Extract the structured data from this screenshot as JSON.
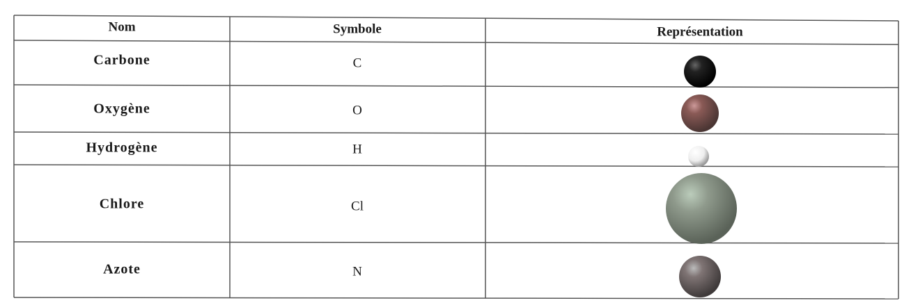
{
  "header": [
    "Nom",
    "Symbole",
    "Représentation"
  ],
  "rows": [
    [
      "Carbone",
      "C"
    ],
    [
      "Oxygène",
      "O"
    ],
    [
      "Hydrogène",
      "H"
    ],
    [
      "Chlore",
      "Cl"
    ],
    [
      "Azote",
      "N"
    ]
  ]
}
